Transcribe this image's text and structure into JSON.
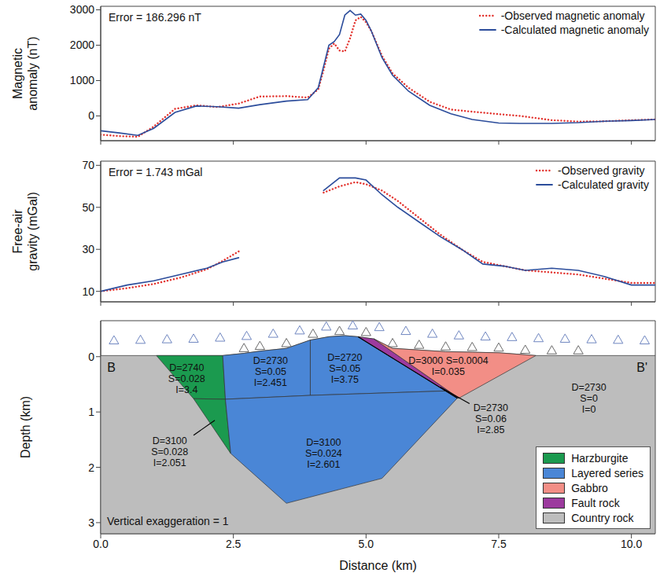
{
  "chart_data": [
    {
      "type": "line",
      "annotations": [
        "Error = 186.296 nT"
      ],
      "ylabel": "Magnetic anomaly (nT)",
      "x": [
        0,
        0.35,
        0.7,
        1.0,
        1.4,
        1.8,
        2.2,
        2.6,
        3.0,
        3.5,
        3.9,
        4.1,
        4.2,
        4.3,
        4.4,
        4.5,
        4.6,
        4.7,
        4.8,
        4.9,
        5.0,
        5.1,
        5.3,
        5.5,
        5.8,
        6.2,
        6.6,
        7.0,
        7.5,
        7.9,
        8.5,
        9.0,
        9.5,
        10.0,
        10.45
      ],
      "series": [
        {
          "name": "-Observed magnetic anomaly",
          "color": "#e3342f",
          "line_style": "dotted",
          "values": [
            -530,
            -570,
            -590,
            -300,
            200,
            300,
            250,
            350,
            550,
            560,
            520,
            750,
            1300,
            1900,
            2050,
            1850,
            1820,
            2200,
            2700,
            2800,
            2650,
            2400,
            1700,
            1200,
            800,
            400,
            180,
            120,
            50,
            0,
            -120,
            -160,
            -150,
            -120,
            -100
          ]
        },
        {
          "name": "-Calculated magnetic anomaly",
          "color": "#2b4c9b",
          "line_style": "solid",
          "values": [
            -420,
            -480,
            -550,
            -350,
            100,
            280,
            260,
            220,
            320,
            420,
            460,
            800,
            1400,
            2000,
            2100,
            2300,
            2850,
            2980,
            2850,
            2880,
            2700,
            2400,
            1650,
            1150,
            700,
            300,
            60,
            -100,
            -200,
            -210,
            -210,
            -190,
            -150,
            -130,
            -100
          ]
        }
      ],
      "xlim": [
        0,
        10.45
      ],
      "xticks": [
        0,
        2.5,
        5,
        7.5,
        10
      ],
      "ylim": [
        -700,
        3100
      ],
      "yticks": [
        0,
        1000,
        2000,
        3000
      ],
      "tick_labels": "y",
      "legend": "upper right"
    },
    {
      "type": "line",
      "annotations": [
        "Error = 1.743 mGal"
      ],
      "ylabel": "Free-air gravity (mGal)",
      "x": [
        0,
        0.5,
        1.0,
        1.5,
        2.0,
        2.3,
        2.6,
        3.4,
        4.2,
        4.5,
        4.8,
        5.0,
        5.3,
        5.6,
        6.0,
        6.4,
        6.8,
        7.2,
        7.6,
        8.0,
        8.5,
        9.0,
        9.5,
        10.0,
        10.45
      ],
      "series": [
        {
          "name": "-Observed gravity",
          "color": "#e3342f",
          "line_style": "dotted",
          "values": [
            10,
            11.5,
            13.5,
            16.5,
            20.5,
            24.5,
            29,
            null,
            57,
            60,
            62,
            61,
            58,
            53,
            45,
            37,
            30,
            24,
            22,
            20,
            19,
            18,
            16,
            14,
            14
          ]
        },
        {
          "name": "-Calculated gravity",
          "color": "#2b4c9b",
          "line_style": "solid",
          "values": [
            10,
            13,
            15,
            18,
            21,
            24,
            26,
            null,
            58,
            64,
            64,
            63,
            56,
            50,
            43,
            36,
            30,
            23,
            22,
            20,
            21,
            20,
            17,
            13,
            13
          ]
        }
      ],
      "xlim": [
        0,
        10.45
      ],
      "xticks": [
        0,
        2.5,
        5,
        7.5,
        10
      ],
      "ylim": [
        5,
        72
      ],
      "yticks": [
        10,
        30,
        50,
        70
      ],
      "tick_labels": "y",
      "legend": "upper right"
    },
    {
      "type": "section",
      "xlabel": "Distance (km)",
      "ylabel": "Depth (km)",
      "annotations": [
        "Vertical exaggeration = 1"
      ],
      "xlim": [
        0,
        10.45
      ],
      "xticks": [
        {
          "value": 0,
          "label": "0.0"
        },
        {
          "value": 2.5,
          "label": "2.5"
        },
        {
          "value": 5,
          "label": "5.0"
        },
        {
          "value": 7.5,
          "label": "7.5"
        },
        {
          "value": 10,
          "label": "10.0"
        }
      ],
      "ylim": [
        -0.65,
        3.2
      ],
      "yticks": [
        0,
        1,
        2,
        3
      ],
      "legend": "lower right",
      "units": [
        {
          "name": "Harzburgite",
          "color": "#1b9a4f"
        },
        {
          "name": "Layered series",
          "color": "#4a86d6"
        },
        {
          "name": "Gabbro",
          "color": "#f28e86"
        },
        {
          "name": "Fault rock",
          "color": "#9c3a9e"
        },
        {
          "name": "Country rock",
          "color": "#bdbdbd"
        }
      ],
      "polygons": [
        {
          "unit": "Country rock",
          "points": [
            [
              0,
              -0.02
            ],
            [
              1.05,
              -0.02
            ],
            [
              2.3,
              -0.02
            ],
            [
              2.7,
              -0.06
            ],
            [
              3.0,
              -0.1
            ],
            [
              3.5,
              -0.15
            ],
            [
              3.95,
              -0.3
            ],
            [
              4.3,
              -0.36
            ],
            [
              4.6,
              -0.38
            ],
            [
              4.85,
              -0.36
            ],
            [
              5.15,
              -0.32
            ],
            [
              5.5,
              -0.15
            ],
            [
              6.0,
              -0.12
            ],
            [
              6.5,
              -0.09
            ],
            [
              7.0,
              -0.08
            ],
            [
              7.5,
              -0.07
            ],
            [
              8.2,
              -0.02
            ],
            [
              10.45,
              -0.02
            ],
            [
              10.45,
              3.2
            ],
            [
              0,
              3.2
            ]
          ]
        },
        {
          "unit": "Harzburgite",
          "points": [
            [
              1.05,
              -0.02
            ],
            [
              2.3,
              -0.02
            ],
            [
              2.35,
              0.77
            ],
            [
              1.75,
              0.76
            ]
          ]
        },
        {
          "unit": "Harzburgite",
          "points": [
            [
              1.75,
              0.76
            ],
            [
              2.35,
              0.77
            ],
            [
              2.45,
              1.75
            ]
          ]
        },
        {
          "unit": "Layered series",
          "points": [
            [
              2.3,
              -0.02
            ],
            [
              2.7,
              -0.06
            ],
            [
              3.0,
              -0.1
            ],
            [
              3.5,
              -0.15
            ],
            [
              3.95,
              -0.3
            ],
            [
              3.95,
              0.7
            ],
            [
              2.35,
              0.77
            ]
          ]
        },
        {
          "unit": "Layered series",
          "points": [
            [
              3.95,
              -0.3
            ],
            [
              4.3,
              -0.36
            ],
            [
              4.6,
              -0.38
            ],
            [
              4.85,
              -0.36
            ],
            [
              6.5,
              0.62
            ],
            [
              3.95,
              0.7
            ]
          ]
        },
        {
          "unit": "Layered series",
          "points": [
            [
              2.35,
              0.77
            ],
            [
              3.95,
              0.7
            ],
            [
              6.5,
              0.62
            ],
            [
              6.72,
              0.75
            ],
            [
              5.3,
              2.2
            ],
            [
              3.5,
              2.65
            ],
            [
              2.45,
              1.75
            ]
          ]
        },
        {
          "unit": "Fault rock",
          "points": [
            [
              4.85,
              -0.36
            ],
            [
              5.15,
              -0.32
            ],
            [
              6.75,
              0.75
            ],
            [
              6.72,
              0.75
            ]
          ]
        },
        {
          "unit": "Gabbro",
          "points": [
            [
              5.15,
              -0.32
            ],
            [
              5.5,
              -0.15
            ],
            [
              6.0,
              -0.12
            ],
            [
              6.5,
              -0.09
            ],
            [
              7.0,
              -0.08
            ],
            [
              7.5,
              -0.07
            ],
            [
              8.2,
              -0.02
            ],
            [
              6.75,
              0.75
            ]
          ]
        }
      ],
      "lines": [
        {
          "color": "#000000",
          "points": [
            [
              4.85,
              -0.36
            ],
            [
              6.72,
              0.75
            ]
          ]
        },
        {
          "color": "#000000",
          "points": [
            [
              1.75,
              1.42
            ],
            [
              2.15,
              1.15
            ]
          ]
        },
        {
          "color": "#000000",
          "points": [
            [
              6.4,
              0.55
            ],
            [
              6.95,
              0.85
            ]
          ]
        }
      ],
      "labels": [
        {
          "x": 1.62,
          "y": 0.4,
          "text": [
            "D=2740",
            "S=0.028",
            "I=3.4"
          ]
        },
        {
          "x": 1.3,
          "y": 1.72,
          "text": [
            "D=3100",
            "S=0.028",
            "I=2.051"
          ]
        },
        {
          "x": 3.2,
          "y": 0.28,
          "text": [
            "D=2730",
            "S=0.05",
            "I=2.451"
          ]
        },
        {
          "x": 4.6,
          "y": 0.22,
          "text": [
            "D=2720",
            "S=0.05",
            "I=3.75"
          ]
        },
        {
          "x": 6.55,
          "y": 0.18,
          "text": [
            "D=3000 S=0.0004",
            "I=0.035"
          ]
        },
        {
          "x": 7.35,
          "y": 1.12,
          "text": [
            "D=2730",
            "S=0.06",
            "I=2.85"
          ]
        },
        {
          "x": 9.2,
          "y": 0.75,
          "text": [
            "D=2730",
            "S=0",
            "I=0"
          ]
        },
        {
          "x": 4.2,
          "y": 1.75,
          "text": [
            "D=3100",
            "S=0.024",
            "I=2.601"
          ]
        },
        {
          "x": 0.2,
          "y": 0.2,
          "text": [
            "B"
          ]
        },
        {
          "x": 10.2,
          "y": 0.2,
          "text": [
            "B'"
          ]
        }
      ],
      "stations": [
        {
          "color": "#6f86c0",
          "marker": "triangle",
          "x": [
            0.25,
            0.75,
            1.25,
            1.75,
            2.25,
            2.75,
            3.25,
            3.75,
            4.25,
            4.75,
            5.25,
            5.75,
            6.25,
            6.75,
            7.25,
            7.75,
            8.25,
            8.75,
            9.25,
            9.75,
            10.25
          ],
          "y": [
            -0.28,
            -0.29,
            -0.3,
            -0.31,
            -0.33,
            -0.36,
            -0.4,
            -0.46,
            -0.53,
            -0.55,
            -0.52,
            -0.45,
            -0.4,
            -0.37,
            -0.35,
            -0.34,
            -0.32,
            -0.31,
            -0.3,
            -0.29,
            -0.28
          ]
        },
        {
          "color": "#6a6a6a",
          "marker": "triangle",
          "x": [
            2.7,
            3.0,
            3.5,
            4.0,
            4.5,
            5.0,
            5.5,
            6.0,
            6.5,
            7.0,
            7.5,
            8.0,
            8.5,
            9.0
          ],
          "y": [
            -0.14,
            -0.18,
            -0.23,
            -0.4,
            -0.45,
            -0.43,
            -0.23,
            -0.2,
            -0.17,
            -0.16,
            -0.15,
            -0.11,
            -0.1,
            -0.1
          ]
        }
      ]
    }
  ]
}
